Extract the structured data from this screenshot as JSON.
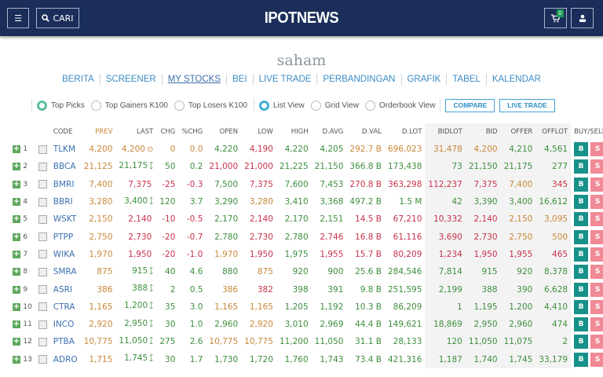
{
  "header": {
    "logo": "IPOTNEWS",
    "search_label": "CARI",
    "cart_count": "0",
    "icons": [
      "menu-icon",
      "search-icon",
      "cart-icon",
      "user-icon"
    ]
  },
  "section_title": "saham",
  "subnav": [
    {
      "label": "BERITA",
      "active": false
    },
    {
      "label": "SCREENER",
      "active": false
    },
    {
      "label": "MY STOCKS",
      "active": true
    },
    {
      "label": "BEI",
      "active": false
    },
    {
      "label": "LIVE TRADE",
      "active": false
    },
    {
      "label": "PERBANDINGAN",
      "active": false
    },
    {
      "label": "GRAFIK",
      "active": false
    },
    {
      "label": "TABEL",
      "active": false
    },
    {
      "label": "KALENDAR",
      "active": false
    }
  ],
  "filters": {
    "list": [
      {
        "label": "Top Picks",
        "selected": true
      },
      {
        "label": "Top Gainers K100",
        "selected": false
      },
      {
        "label": "Top Losers K100",
        "selected": false
      }
    ],
    "views": [
      {
        "label": "List View",
        "selected": true
      },
      {
        "label": "Grid View",
        "selected": false
      },
      {
        "label": "Orderbook View",
        "selected": false
      }
    ],
    "buttons": [
      "COMPARE",
      "LIVE TRADE"
    ]
  },
  "colors": {
    "header_bg": "#1b2e5a",
    "up": "#3e8e3e",
    "down": "#c8324a",
    "unchanged": "#c9883a",
    "buy": "#17918a",
    "sell": "#f08a96",
    "link": "#3b8bc4"
  },
  "table": {
    "headers": [
      "CODE",
      "PREV",
      "LAST",
      "CHG",
      "%CHG",
      "OPEN",
      "LOW",
      "HIGH",
      "D.AVG",
      "D.VAL",
      "D.LOT",
      "BIDLOT",
      "BID",
      "OFFER",
      "OFFLOT",
      "BUY/SELL"
    ],
    "buy_label": "B",
    "sell_label": "S",
    "rows": [
      {
        "n": "1",
        "code": "TLKM",
        "prev": "4,200",
        "last": "4,200",
        "dir": "flat",
        "chg": "0",
        "pchg": "0.0",
        "open": "4,220",
        "low": "4,190",
        "high": "4,220",
        "davg": "4,205",
        "dval": "292.7 B",
        "dlot": "696,023",
        "bidlot": "31,478",
        "bid": "4,200",
        "offer": "4,210",
        "offlot": "4,561",
        "c": {
          "last": "o",
          "chg": "o",
          "open": "g",
          "low": "r",
          "high": "g",
          "davg": "g",
          "dval": "o",
          "dlot": "o",
          "bidlot": "o",
          "bid": "o",
          "offer": "g",
          "offlot": "g"
        }
      },
      {
        "n": "2",
        "code": "BBCA",
        "prev": "21,125",
        "last": "21,175",
        "dir": "up",
        "chg": "50",
        "pchg": "0.2",
        "open": "21,000",
        "low": "21,000",
        "high": "21,225",
        "davg": "21,150",
        "dval": "366.8 B",
        "dlot": "173,438",
        "bidlot": "73",
        "bid": "21,150",
        "offer": "21,175",
        "offlot": "277",
        "c": {
          "last": "g",
          "chg": "g",
          "open": "r",
          "low": "r",
          "high": "g",
          "davg": "g",
          "dval": "g",
          "dlot": "g",
          "bidlot": "g",
          "bid": "g",
          "offer": "g",
          "offlot": "g"
        }
      },
      {
        "n": "3",
        "code": "BMRI",
        "prev": "7,400",
        "last": "7,375",
        "dir": "down",
        "chg": "-25",
        "pchg": "-0.3",
        "open": "7,500",
        "low": "7,375",
        "high": "7,600",
        "davg": "7,453",
        "dval": "270.8 B",
        "dlot": "363,298",
        "bidlot": "112,237",
        "bid": "7,375",
        "offer": "7,400",
        "offlot": "345",
        "c": {
          "last": "r",
          "chg": "r",
          "open": "g",
          "low": "r",
          "high": "g",
          "davg": "g",
          "dval": "r",
          "dlot": "r",
          "bidlot": "r",
          "bid": "r",
          "offer": "o",
          "offlot": "r"
        }
      },
      {
        "n": "4",
        "code": "BBRI",
        "prev": "3,280",
        "last": "3,400",
        "dir": "up",
        "chg": "120",
        "pchg": "3.7",
        "open": "3,290",
        "low": "3,280",
        "high": "3,410",
        "davg": "3,368",
        "dval": "497.2 B",
        "dlot": "1.5 M",
        "bidlot": "42",
        "bid": "3,390",
        "offer": "3,400",
        "offlot": "16,612",
        "c": {
          "last": "g",
          "chg": "g",
          "open": "g",
          "low": "o",
          "high": "g",
          "davg": "g",
          "dval": "g",
          "dlot": "g",
          "bidlot": "g",
          "bid": "g",
          "offer": "g",
          "offlot": "g"
        }
      },
      {
        "n": "5",
        "code": "WSKT",
        "prev": "2,150",
        "last": "2,140",
        "dir": "down",
        "chg": "-10",
        "pchg": "-0.5",
        "open": "2,170",
        "low": "2,140",
        "high": "2,170",
        "davg": "2,151",
        "dval": "14.5 B",
        "dlot": "67,210",
        "bidlot": "10,332",
        "bid": "2,140",
        "offer": "2,150",
        "offlot": "3,095",
        "c": {
          "last": "r",
          "chg": "r",
          "open": "g",
          "low": "r",
          "high": "g",
          "davg": "g",
          "dval": "r",
          "dlot": "r",
          "bidlot": "r",
          "bid": "r",
          "offer": "o",
          "offlot": "o"
        }
      },
      {
        "n": "6",
        "code": "PTPP",
        "prev": "2,750",
        "last": "2,730",
        "dir": "down",
        "chg": "-20",
        "pchg": "-0.7",
        "open": "2,780",
        "low": "2,730",
        "high": "2,780",
        "davg": "2,746",
        "dval": "16.8 B",
        "dlot": "61,116",
        "bidlot": "3,690",
        "bid": "2,730",
        "offer": "2,750",
        "offlot": "500",
        "c": {
          "last": "r",
          "chg": "r",
          "open": "g",
          "low": "r",
          "high": "g",
          "davg": "r",
          "dval": "r",
          "dlot": "r",
          "bidlot": "r",
          "bid": "r",
          "offer": "o",
          "offlot": "o"
        }
      },
      {
        "n": "7",
        "code": "WIKA",
        "prev": "1,970",
        "last": "1,950",
        "dir": "down",
        "chg": "-20",
        "pchg": "-1.0",
        "open": "1,970",
        "low": "1,950",
        "high": "1,975",
        "davg": "1,955",
        "dval": "15.7 B",
        "dlot": "80,209",
        "bidlot": "1,234",
        "bid": "1,950",
        "offer": "1,955",
        "offlot": "465",
        "c": {
          "last": "r",
          "chg": "r",
          "open": "o",
          "low": "r",
          "high": "g",
          "davg": "r",
          "dval": "r",
          "dlot": "r",
          "bidlot": "r",
          "bid": "r",
          "offer": "r",
          "offlot": "r"
        }
      },
      {
        "n": "8",
        "code": "SMRA",
        "prev": "875",
        "last": "915",
        "dir": "up",
        "chg": "40",
        "pchg": "4.6",
        "open": "880",
        "low": "875",
        "high": "920",
        "davg": "900",
        "dval": "25.6 B",
        "dlot": "284,546",
        "bidlot": "7,814",
        "bid": "915",
        "offer": "920",
        "offlot": "8,378",
        "c": {
          "last": "g",
          "chg": "g",
          "open": "g",
          "low": "o",
          "high": "g",
          "davg": "g",
          "dval": "g",
          "dlot": "g",
          "bidlot": "g",
          "bid": "g",
          "offer": "g",
          "offlot": "g"
        }
      },
      {
        "n": "9",
        "code": "ASRI",
        "prev": "386",
        "last": "388",
        "dir": "up",
        "chg": "2",
        "pchg": "0.5",
        "open": "386",
        "low": "382",
        "high": "398",
        "davg": "391",
        "dval": "9.8 B",
        "dlot": "251,595",
        "bidlot": "2,199",
        "bid": "388",
        "offer": "390",
        "offlot": "6,628",
        "c": {
          "last": "g",
          "chg": "g",
          "open": "o",
          "low": "r",
          "high": "g",
          "davg": "g",
          "dval": "g",
          "dlot": "g",
          "bidlot": "g",
          "bid": "g",
          "offer": "g",
          "offlot": "g"
        }
      },
      {
        "n": "10",
        "code": "CTRA",
        "prev": "1,165",
        "last": "1,200",
        "dir": "up",
        "chg": "35",
        "pchg": "3.0",
        "open": "1,165",
        "low": "1,165",
        "high": "1,205",
        "davg": "1,192",
        "dval": "10.3 B",
        "dlot": "86,209",
        "bidlot": "1",
        "bid": "1,195",
        "offer": "1,200",
        "offlot": "4,410",
        "c": {
          "last": "g",
          "chg": "g",
          "open": "o",
          "low": "o",
          "high": "g",
          "davg": "g",
          "dval": "g",
          "dlot": "g",
          "bidlot": "g",
          "bid": "g",
          "offer": "g",
          "offlot": "g"
        }
      },
      {
        "n": "11",
        "code": "INCO",
        "prev": "2,920",
        "last": "2,950",
        "dir": "up",
        "chg": "30",
        "pchg": "1.0",
        "open": "2,960",
        "low": "2,920",
        "high": "3,010",
        "davg": "2,969",
        "dval": "44.4 B",
        "dlot": "149,621",
        "bidlot": "18,869",
        "bid": "2,950",
        "offer": "2,960",
        "offlot": "474",
        "c": {
          "last": "g",
          "chg": "g",
          "open": "g",
          "low": "o",
          "high": "g",
          "davg": "g",
          "dval": "g",
          "dlot": "g",
          "bidlot": "g",
          "bid": "g",
          "offer": "g",
          "offlot": "g"
        }
      },
      {
        "n": "12",
        "code": "PTBA",
        "prev": "10,775",
        "last": "11,050",
        "dir": "up",
        "chg": "275",
        "pchg": "2.6",
        "open": "10,775",
        "low": "10,775",
        "high": "11,200",
        "davg": "11,050",
        "dval": "31.1 B",
        "dlot": "28,133",
        "bidlot": "120",
        "bid": "11,050",
        "offer": "11,075",
        "offlot": "2",
        "hl": true,
        "c": {
          "last": "g",
          "chg": "g",
          "open": "o",
          "low": "o",
          "high": "g",
          "davg": "g",
          "dval": "g",
          "dlot": "g",
          "bidlot": "g",
          "bid": "g",
          "offer": "g",
          "offlot": "g"
        }
      },
      {
        "n": "13",
        "code": "ADRO",
        "prev": "1,715",
        "last": "1,745",
        "dir": "up",
        "chg": "30",
        "pchg": "1.7",
        "open": "1,730",
        "low": "1,720",
        "high": "1,760",
        "davg": "1,743",
        "dval": "73.4 B",
        "dlot": "421,316",
        "bidlot": "1,187",
        "bid": "1,740",
        "offer": "1,745",
        "offlot": "33,179",
        "c": {
          "last": "g",
          "chg": "g",
          "open": "g",
          "low": "g",
          "high": "g",
          "davg": "g",
          "dval": "g",
          "dlot": "g",
          "bidlot": "g",
          "bid": "g",
          "offer": "g",
          "offlot": "g"
        }
      }
    ]
  }
}
